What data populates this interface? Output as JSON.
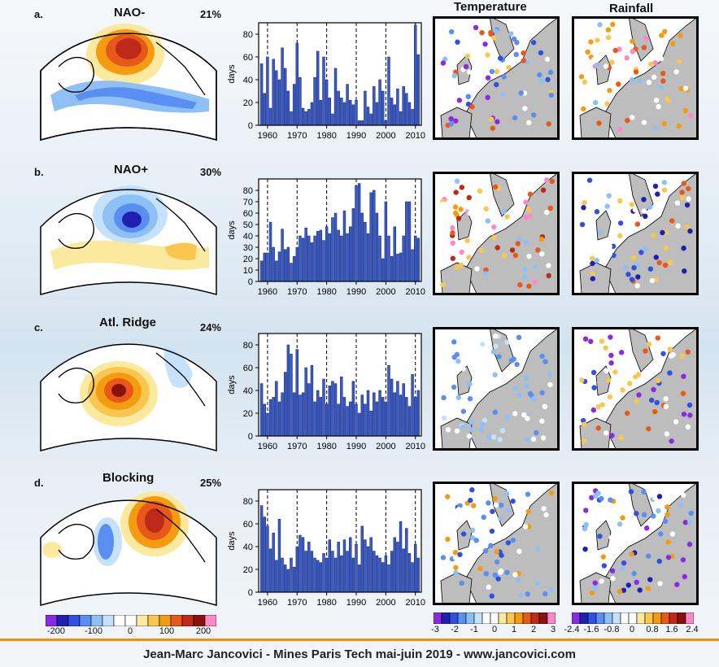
{
  "column_headers": {
    "temperature": "Temperature",
    "rainfall": "Rainfall"
  },
  "rows": [
    {
      "letter": "a.",
      "title": "NAO-",
      "percent": "21%"
    },
    {
      "letter": "b.",
      "title": "NAO+",
      "percent": "30%"
    },
    {
      "letter": "c.",
      "title": "Atl. Ridge",
      "percent": "24%"
    },
    {
      "letter": "d.",
      "title": "Blocking",
      "percent": "25%"
    }
  ],
  "colorbars": {
    "z500": {
      "ticks": [
        "-200",
        "-100",
        "0",
        "100",
        "200"
      ],
      "colors": [
        "#8a2be2",
        "#2020b0",
        "#3050e0",
        "#5a8ef0",
        "#8fc0f5",
        "#c6e2fa",
        "#ffffff",
        "#ffffff",
        "#fbe9a0",
        "#f9c74f",
        "#f39c12",
        "#e8581a",
        "#c0281a",
        "#8b1010",
        "#ff88c8"
      ]
    },
    "temperature": {
      "ticks": [
        "-3",
        "-2",
        "-1",
        "0",
        "1",
        "2",
        "3"
      ],
      "colors": [
        "#8a2be2",
        "#2020b0",
        "#3050e0",
        "#5a8ef0",
        "#8fc0f5",
        "#c6e2fa",
        "#ffffff",
        "#ffffff",
        "#fbe9a0",
        "#f9c74f",
        "#f39c12",
        "#e8581a",
        "#c0281a",
        "#8b1010",
        "#ff88c8"
      ]
    },
    "rainfall": {
      "ticks": [
        "-2.4",
        "-1.6",
        "-0.8",
        "0",
        "0.8",
        "1.6",
        "2.4"
      ],
      "colors": [
        "#8a2be2",
        "#2020b0",
        "#3050e0",
        "#5a8ef0",
        "#8fc0f5",
        "#c6e2fa",
        "#ffffff",
        "#ffffff",
        "#fbe9a0",
        "#f9c74f",
        "#f39c12",
        "#e8581a",
        "#c0281a",
        "#8b1010",
        "#ff88c8"
      ]
    }
  },
  "footer": "Jean-Marc Jancovici - Mines Paris Tech mai-juin 2019 - www.jancovici.com",
  "chart_data": [
    {
      "type": "bar",
      "title": "",
      "ylabel": "days",
      "xlabel": "",
      "xlim": [
        1957,
        2012
      ],
      "ylim": [
        0,
        90
      ],
      "yticks": [
        "0",
        "20",
        "40",
        "60",
        "80"
      ],
      "xticks": [
        "1960",
        "1970",
        "1980",
        "1990",
        "2000",
        "2010"
      ],
      "x": [
        1958,
        1959,
        1960,
        1961,
        1962,
        1963,
        1964,
        1965,
        1966,
        1967,
        1968,
        1969,
        1970,
        1971,
        1972,
        1973,
        1974,
        1975,
        1976,
        1977,
        1978,
        1979,
        1980,
        1981,
        1982,
        1983,
        1984,
        1985,
        1986,
        1987,
        1988,
        1989,
        1990,
        1991,
        1992,
        1993,
        1994,
        1995,
        1996,
        1997,
        1998,
        1999,
        2000,
        2001,
        2002,
        2003,
        2004,
        2005,
        2006,
        2007,
        2008,
        2009,
        2010,
        2011
      ],
      "values": [
        54,
        28,
        60,
        15,
        58,
        48,
        40,
        68,
        50,
        30,
        12,
        36,
        72,
        42,
        15,
        12,
        14,
        20,
        42,
        65,
        22,
        60,
        40,
        24,
        10,
        50,
        30,
        24,
        20,
        36,
        22,
        18,
        22,
        4,
        4,
        30,
        16,
        10,
        34,
        20,
        40,
        30,
        4,
        60,
        24,
        18,
        32,
        12,
        34,
        28,
        20,
        14,
        88,
        62
      ]
    },
    {
      "type": "bar",
      "title": "",
      "ylabel": "days",
      "xlabel": "",
      "xlim": [
        1957,
        2012
      ],
      "ylim": [
        0,
        90
      ],
      "yticks": [
        "0",
        "10",
        "20",
        "30",
        "40",
        "50",
        "60",
        "70",
        "80"
      ],
      "xticks": [
        "1960",
        "1970",
        "1980",
        "1990",
        "2000",
        "2010"
      ],
      "x": [
        1958,
        1959,
        1960,
        1961,
        1962,
        1963,
        1964,
        1965,
        1966,
        1967,
        1968,
        1969,
        1970,
        1971,
        1972,
        1973,
        1974,
        1975,
        1976,
        1977,
        1978,
        1979,
        1980,
        1981,
        1982,
        1983,
        1984,
        1985,
        1986,
        1987,
        1988,
        1989,
        1990,
        1991,
        1992,
        1993,
        1994,
        1995,
        1996,
        1997,
        1998,
        1999,
        2000,
        2001,
        2002,
        2003,
        2004,
        2005,
        2006,
        2007,
        2008,
        2009,
        2010,
        2011
      ],
      "values": [
        18,
        25,
        25,
        52,
        30,
        18,
        26,
        46,
        28,
        30,
        16,
        22,
        30,
        40,
        38,
        47,
        40,
        34,
        40,
        44,
        45,
        36,
        48,
        42,
        56,
        60,
        45,
        40,
        62,
        42,
        48,
        64,
        84,
        86,
        60,
        52,
        42,
        78,
        80,
        60,
        40,
        20,
        70,
        40,
        22,
        48,
        24,
        25,
        40,
        70,
        70,
        28,
        40,
        38
      ]
    },
    {
      "type": "bar",
      "title": "",
      "ylabel": "days",
      "xlabel": "",
      "xlim": [
        1957,
        2012
      ],
      "ylim": [
        0,
        90
      ],
      "yticks": [
        "0",
        "20",
        "40",
        "60",
        "80"
      ],
      "xticks": [
        "1960",
        "1970",
        "1980",
        "1990",
        "2000",
        "2010"
      ],
      "x": [
        1958,
        1959,
        1960,
        1961,
        1962,
        1963,
        1964,
        1965,
        1966,
        1967,
        1968,
        1969,
        1970,
        1971,
        1972,
        1973,
        1974,
        1975,
        1976,
        1977,
        1978,
        1979,
        1980,
        1981,
        1982,
        1983,
        1984,
        1985,
        1986,
        1987,
        1988,
        1989,
        1990,
        1991,
        1992,
        1993,
        1994,
        1995,
        1996,
        1997,
        1998,
        1999,
        2000,
        2001,
        2002,
        2003,
        2004,
        2005,
        2006,
        2007,
        2008,
        2009,
        2010,
        2011
      ],
      "values": [
        46,
        28,
        20,
        32,
        34,
        48,
        30,
        38,
        56,
        80,
        72,
        38,
        76,
        36,
        38,
        60,
        46,
        62,
        30,
        40,
        34,
        50,
        28,
        44,
        48,
        46,
        28,
        52,
        34,
        26,
        30,
        48,
        28,
        20,
        36,
        28,
        40,
        22,
        38,
        30,
        40,
        34,
        30,
        62,
        50,
        38,
        48,
        36,
        46,
        34,
        26,
        54,
        34,
        40
      ]
    },
    {
      "type": "bar",
      "title": "",
      "ylabel": "days",
      "xlabel": "",
      "xlim": [
        1957,
        2012
      ],
      "ylim": [
        0,
        90
      ],
      "yticks": [
        "0",
        "20",
        "40",
        "60",
        "80"
      ],
      "xticks": [
        "1960",
        "1970",
        "1980",
        "1990",
        "2000",
        "2010"
      ],
      "x": [
        1958,
        1959,
        1960,
        1961,
        1962,
        1963,
        1964,
        1965,
        1966,
        1967,
        1968,
        1969,
        1970,
        1971,
        1972,
        1973,
        1974,
        1975,
        1976,
        1977,
        1978,
        1979,
        1980,
        1981,
        1982,
        1983,
        1984,
        1985,
        1986,
        1987,
        1988,
        1989,
        1990,
        1991,
        1992,
        1993,
        1994,
        1995,
        1996,
        1997,
        1998,
        1999,
        2000,
        2001,
        2002,
        2003,
        2004,
        2005,
        2006,
        2007,
        2008,
        2009,
        2010,
        2011
      ],
      "values": [
        76,
        66,
        58,
        38,
        52,
        28,
        64,
        30,
        24,
        20,
        30,
        22,
        40,
        50,
        48,
        36,
        44,
        36,
        30,
        28,
        26,
        34,
        30,
        46,
        36,
        30,
        44,
        32,
        46,
        36,
        48,
        30,
        42,
        24,
        58,
        46,
        40,
        48,
        36,
        32,
        30,
        26,
        32,
        24,
        36,
        48,
        44,
        62,
        38,
        56,
        34,
        26,
        42,
        30
      ]
    }
  ]
}
